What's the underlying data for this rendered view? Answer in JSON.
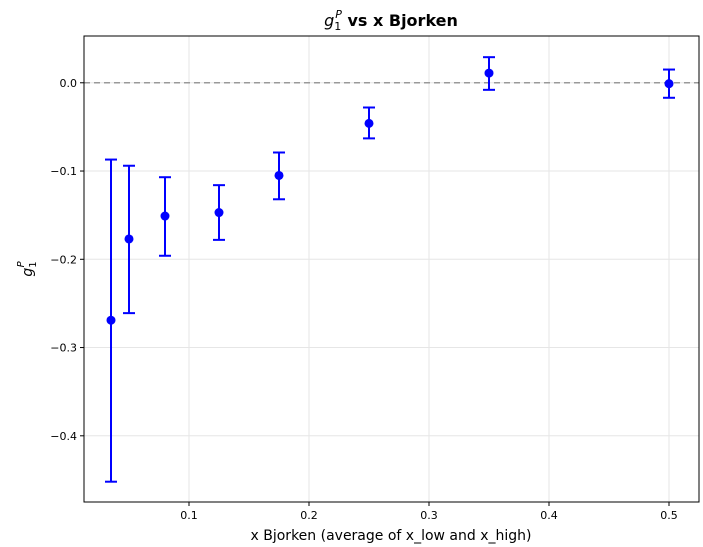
{
  "chart_data": {
    "type": "scatter",
    "title": {
      "symbol": "g",
      "sub": "1",
      "sup": "P",
      "rest": " vs x Bjorken"
    },
    "xlabel": "x Bjorken (average of x_low and x_high)",
    "ylabel": {
      "symbol": "g",
      "sub": "1",
      "sup": "P"
    },
    "xlim": [
      0.0125,
      0.525
    ],
    "ylim": [
      -0.475,
      0.053
    ],
    "xticks": [
      0.1,
      0.2,
      0.3,
      0.4,
      0.5
    ],
    "xtick_labels": [
      "0.1",
      "0.2",
      "0.3",
      "0.4",
      "0.5"
    ],
    "yticks": [
      0.0,
      -0.1,
      -0.2,
      -0.3,
      -0.4
    ],
    "ytick_labels": [
      "0.0",
      "−0.1",
      "−0.2",
      "−0.3",
      "−0.4"
    ],
    "grid": true,
    "reference_line": {
      "y": 0.0,
      "style": "dashed",
      "color": "#999999"
    },
    "color": "#0000ff",
    "points": [
      {
        "x": 0.035,
        "y": -0.269,
        "err_low": -0.452,
        "err_high": -0.087
      },
      {
        "x": 0.05,
        "y": -0.177,
        "err_low": -0.261,
        "err_high": -0.094
      },
      {
        "x": 0.08,
        "y": -0.151,
        "err_low": -0.196,
        "err_high": -0.107
      },
      {
        "x": 0.125,
        "y": -0.147,
        "err_low": -0.178,
        "err_high": -0.116
      },
      {
        "x": 0.175,
        "y": -0.105,
        "err_low": -0.132,
        "err_high": -0.079
      },
      {
        "x": 0.25,
        "y": -0.046,
        "err_low": -0.063,
        "err_high": -0.028
      },
      {
        "x": 0.35,
        "y": 0.011,
        "err_low": -0.008,
        "err_high": 0.029
      },
      {
        "x": 0.5,
        "y": -0.001,
        "err_low": -0.017,
        "err_high": 0.015
      }
    ]
  }
}
